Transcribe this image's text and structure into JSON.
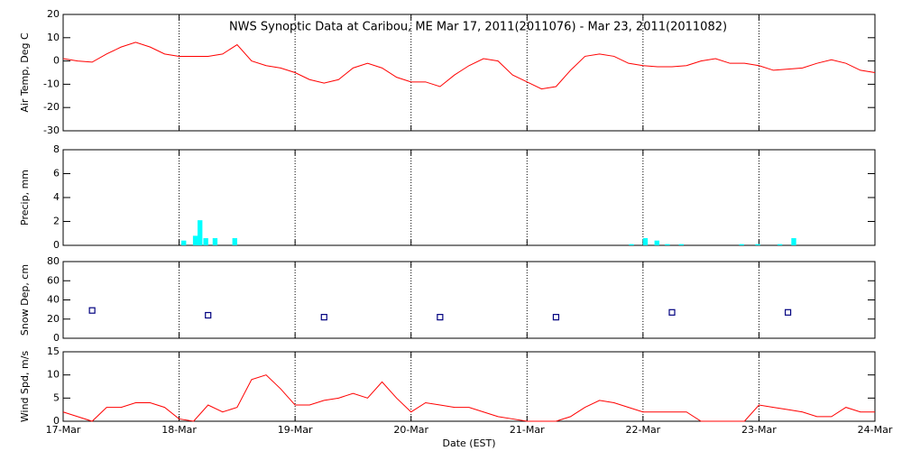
{
  "chart_data": [
    {
      "type": "line",
      "title": "NWS Synoptic Data at Caribou, ME   Mar 17, 2011(2011076) - Mar 23, 2011(2011082)",
      "ylabel": "Air Temp, Deg C",
      "color": "#ff0000",
      "x": [
        0,
        0.125,
        0.25,
        0.375,
        0.5,
        0.625,
        0.75,
        0.875,
        1,
        1.125,
        1.25,
        1.375,
        1.5,
        1.625,
        1.75,
        1.875,
        2,
        2.125,
        2.25,
        2.375,
        2.5,
        2.625,
        2.75,
        2.875,
        3,
        3.125,
        3.25,
        3.375,
        3.5,
        3.625,
        3.75,
        3.875,
        4,
        4.125,
        4.25,
        4.375,
        4.5,
        4.625,
        4.75,
        4.875,
        5,
        5.125,
        5.25,
        5.375,
        5.5,
        5.625,
        5.75,
        5.875,
        6,
        6.125,
        6.25,
        6.375,
        6.5,
        6.625,
        6.75,
        6.875,
        7
      ],
      "values": [
        1,
        0,
        -0.5,
        3,
        6,
        8,
        6,
        3,
        2,
        2,
        2,
        3,
        7,
        0,
        -2,
        -3,
        -5,
        -8,
        -9.5,
        -8,
        -3,
        -1,
        -3,
        -7,
        -9,
        -9,
        -11,
        -6,
        -2,
        1,
        0,
        -6,
        -9,
        -12,
        -11,
        -4,
        2,
        3,
        2,
        -1,
        -2,
        -2.5,
        -2.5,
        -2,
        0,
        1,
        -1,
        -1,
        -2,
        -4,
        -3.5,
        -3,
        -1,
        0.5,
        -1,
        -4,
        -5
      ],
      "xlim": [
        0,
        7
      ],
      "xticks": [
        0,
        1,
        2,
        3,
        4,
        5,
        6,
        7
      ],
      "ylim": [
        -30,
        20
      ],
      "yticks": [
        -30,
        -20,
        -10,
        0,
        10,
        20
      ],
      "grid": true
    },
    {
      "type": "bar",
      "ylabel": "Precip, mm",
      "color": "#00ffff",
      "x": [
        1.04,
        1.14,
        1.18,
        1.23,
        1.31,
        1.48,
        4.9,
        5.02,
        5.12,
        5.21,
        5.33,
        5.85,
        5.99,
        6.18,
        6.3
      ],
      "values": [
        0.4,
        0.8,
        2.1,
        0.6,
        0.6,
        0.6,
        0.1,
        0.6,
        0.4,
        0.1,
        0.1,
        0.1,
        0.1,
        0.1,
        0.6
      ],
      "xlim": [
        0,
        7
      ],
      "xticks": [
        0,
        1,
        2,
        3,
        4,
        5,
        6,
        7
      ],
      "ylim": [
        0,
        8
      ],
      "yticks": [
        0,
        2,
        4,
        6,
        8
      ],
      "grid": true
    },
    {
      "type": "scatter",
      "ylabel": "Snow Dep, cm",
      "color": "#000080",
      "x": [
        0.25,
        1.25,
        2.25,
        3.25,
        4.25,
        5.25,
        6.25
      ],
      "values": [
        29,
        24,
        22,
        22,
        22,
        27,
        27
      ],
      "xlim": [
        0,
        7
      ],
      "xticks": [
        0,
        1,
        2,
        3,
        4,
        5,
        6,
        7
      ],
      "ylim": [
        0,
        80
      ],
      "yticks": [
        0,
        20,
        40,
        60,
        80
      ],
      "grid": true
    },
    {
      "type": "line",
      "ylabel": "Wind Spd, m/s",
      "xlabel": "Date (EST)",
      "color": "#ff0000",
      "x": [
        0,
        0.125,
        0.25,
        0.375,
        0.5,
        0.625,
        0.75,
        0.875,
        1,
        1.125,
        1.25,
        1.375,
        1.5,
        1.625,
        1.75,
        1.875,
        2,
        2.125,
        2.25,
        2.375,
        2.5,
        2.625,
        2.75,
        2.875,
        3,
        3.125,
        3.25,
        3.375,
        3.5,
        3.625,
        3.75,
        3.875,
        4,
        4.125,
        4.25,
        4.375,
        4.5,
        4.625,
        4.75,
        4.875,
        5,
        5.125,
        5.25,
        5.375,
        5.5,
        5.625,
        5.75,
        5.875,
        6,
        6.125,
        6.25,
        6.375,
        6.5,
        6.625,
        6.75,
        6.875,
        7
      ],
      "values": [
        2,
        1,
        0,
        3,
        3,
        4,
        4,
        3,
        0.5,
        0,
        3.5,
        2,
        3,
        9,
        10,
        7,
        3.5,
        3.5,
        4.5,
        5,
        6,
        5,
        8.5,
        5,
        2,
        4,
        3.5,
        3,
        3,
        2,
        1,
        0.5,
        0,
        0,
        0,
        1,
        3,
        4.5,
        4,
        3,
        2,
        2,
        2,
        2,
        0,
        0,
        0,
        0,
        3.5,
        3,
        2.5,
        2,
        1,
        1,
        3,
        2,
        2
      ],
      "xlim": [
        0,
        7
      ],
      "xticks": [
        {
          "value": 0,
          "label": "17-Mar"
        },
        {
          "value": 1,
          "label": "18-Mar"
        },
        {
          "value": 2,
          "label": "19-Mar"
        },
        {
          "value": 3,
          "label": "20-Mar"
        },
        {
          "value": 4,
          "label": "21-Mar"
        },
        {
          "value": 5,
          "label": "22-Mar"
        },
        {
          "value": 6,
          "label": "23-Mar"
        },
        {
          "value": 7,
          "label": "24-Mar"
        }
      ],
      "ylim": [
        0,
        15
      ],
      "yticks": [
        0,
        5,
        10,
        15
      ],
      "grid": true
    }
  ]
}
